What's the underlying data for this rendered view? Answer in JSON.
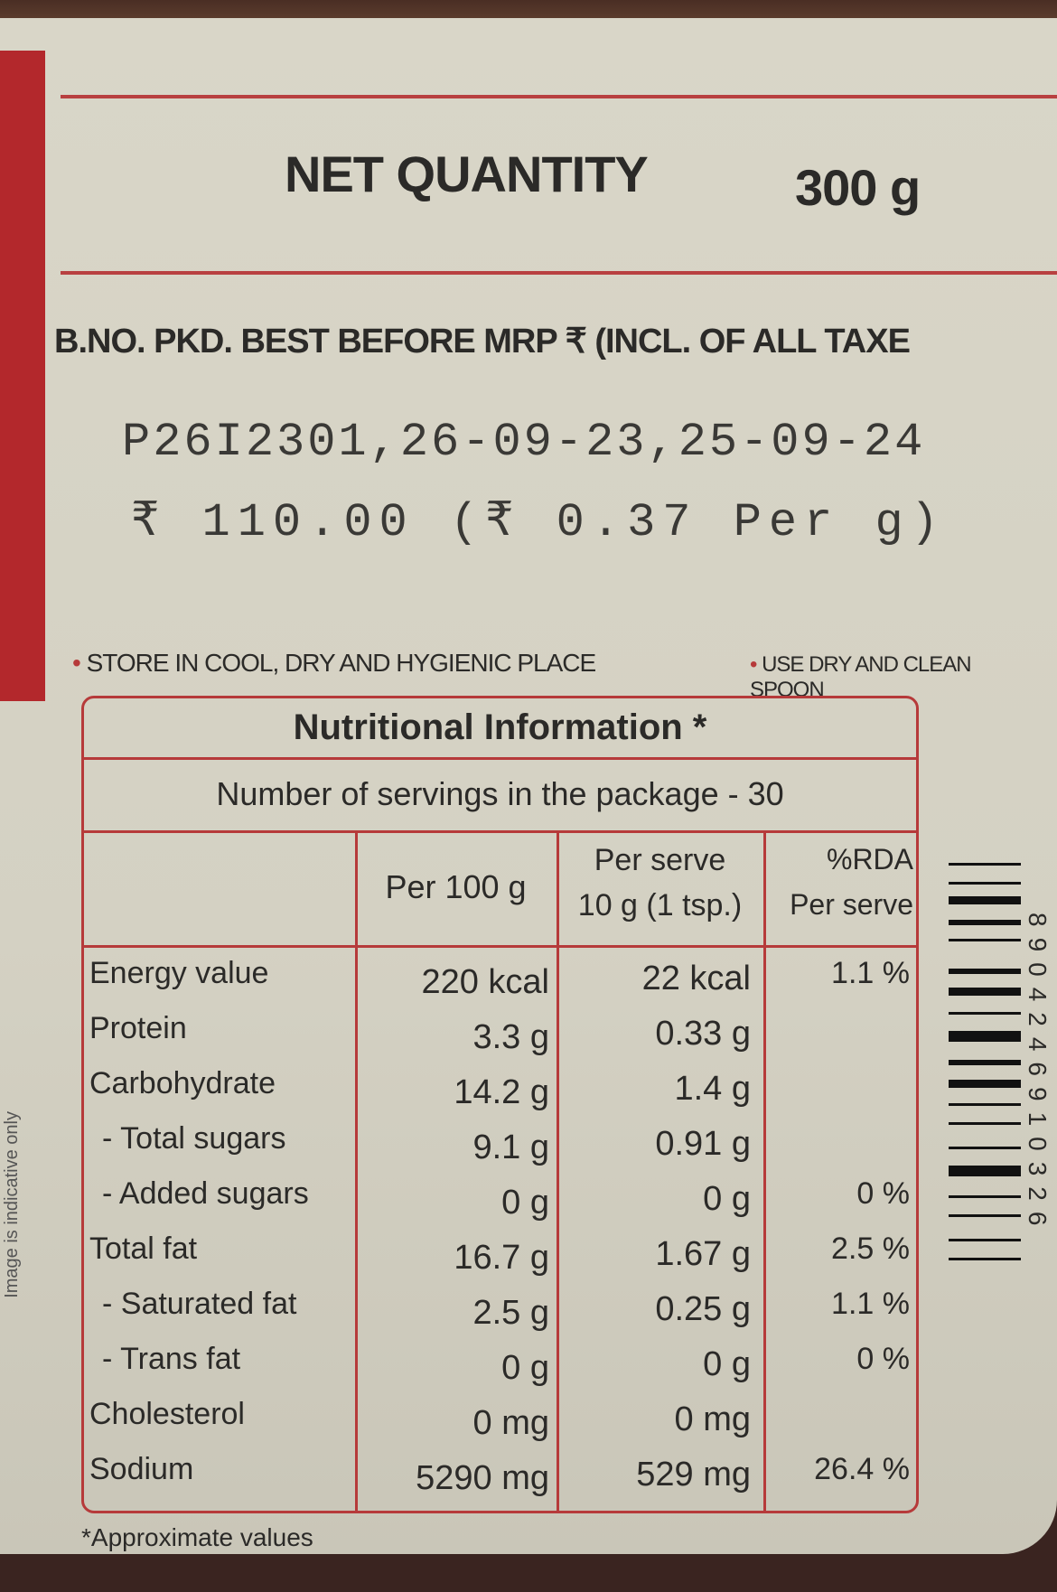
{
  "net_quantity": {
    "label": "NET QUANTITY",
    "value": "300 g"
  },
  "batch_header": "B.NO. PKD. BEST BEFORE MRP ₹ (INCL. OF ALL TAXE",
  "batch_info": {
    "line1": "P26I2301,26-09-23,25-09-24",
    "line2": "₹ 110.00 (₹ 0.37 Per g)"
  },
  "instructions": [
    "STORE IN COOL, DRY AND HYGIENIC PLACE",
    "USE DRY AND CLEAN SPOON"
  ],
  "nutrition": {
    "title": "Nutritional Information *",
    "servings": "Number of servings in the package - 30",
    "columns": [
      "Per 100 g",
      "Per serve 10 g (1 tsp.)",
      "%RDA Per serve"
    ],
    "col_lines": [
      [
        "Per 100 g"
      ],
      [
        "Per serve",
        "10 g (1 tsp.)"
      ],
      [
        "%RDA",
        "Per serve"
      ]
    ],
    "rows": [
      {
        "name": "Energy value",
        "per100": "220 kcal",
        "serve": "22 kcal",
        "rda": "1.1 %"
      },
      {
        "name": "Protein",
        "per100": "3.3 g",
        "serve": "0.33 g",
        "rda": ""
      },
      {
        "name": "Carbohydrate",
        "per100": "14.2 g",
        "serve": "1.4 g",
        "rda": ""
      },
      {
        "name": "- Total sugars",
        "per100": "9.1 g",
        "serve": "0.91 g",
        "rda": ""
      },
      {
        "name": "- Added sugars",
        "per100": "0 g",
        "serve": "0 g",
        "rda": "0 %"
      },
      {
        "name": "Total fat",
        "per100": "16.7 g",
        "serve": "1.67 g",
        "rda": "2.5 %"
      },
      {
        "name": "- Saturated fat",
        "per100": "2.5 g",
        "serve": "0.25 g",
        "rda": "1.1 %"
      },
      {
        "name": "- Trans fat",
        "per100": "0 g",
        "serve": "0 g",
        "rda": "0 %"
      },
      {
        "name": "Cholesterol",
        "per100": "0 mg",
        "serve": "0 mg",
        "rda": ""
      },
      {
        "name": "Sodium",
        "per100": "5290 mg",
        "serve": "529 mg",
        "rda": "26.4 %"
      }
    ],
    "footnote": "*Approximate values"
  },
  "side_note": "Image is indicative only",
  "barcode": "8904246910326",
  "colors": {
    "accent_red": "#b63a3a",
    "label_bg": "#d8d5c7",
    "jar": "#3a2420"
  }
}
